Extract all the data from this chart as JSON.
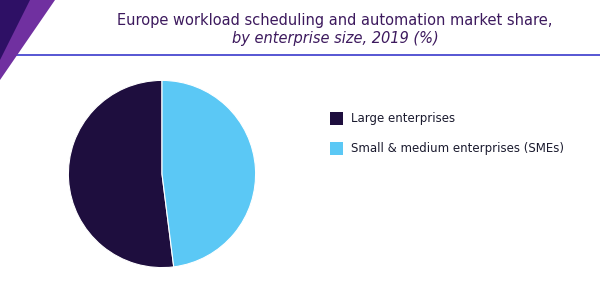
{
  "title_line1": "Europe workload scheduling and automation market share,",
  "title_line2": "by enterprise size, 2019 (%)",
  "slices": [
    52.0,
    48.0
  ],
  "labels": [
    "Large enterprises",
    "Small & medium enterprises (SMEs)"
  ],
  "colors": [
    "#1e0e3e",
    "#5bc8f5"
  ],
  "background_color": "#ffffff",
  "title_color": "#3d1a5e",
  "legend_text_color": "#1a1a2e",
  "title_fontsize": 10.5,
  "legend_fontsize": 8.5,
  "startangle": 90,
  "line_color": "#3a3acc",
  "chevron_outer_color": "#7030a0",
  "chevron_inner_color": "#2e1065"
}
